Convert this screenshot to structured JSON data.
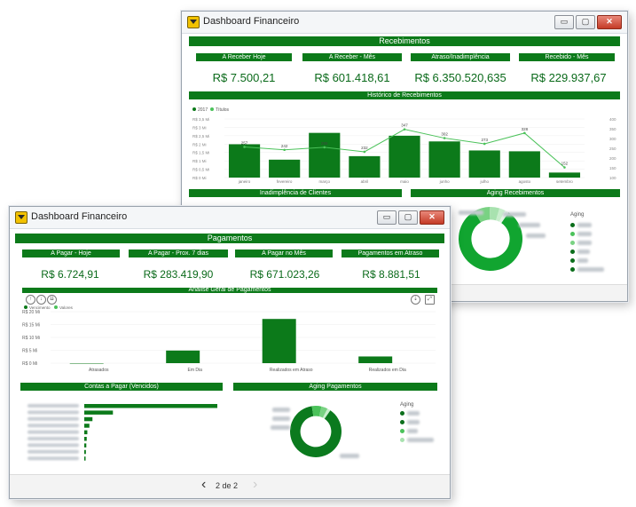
{
  "back_window": {
    "title": "Dashboard Financeiro",
    "buttons": {
      "minimize": "▭",
      "maximize": "▢",
      "close": "✕"
    },
    "header": "Recebimentos",
    "kpis": [
      {
        "label": "A Receber Hoje",
        "value": "R$ 7.500,21"
      },
      {
        "label": "A Receber - Mês",
        "value": "R$ 601.418,61"
      },
      {
        "label": "Atraso/Inadimplência",
        "value": "R$ 6.350.520,635"
      },
      {
        "label": "Recebido - Mês",
        "value": "R$ 229.937,67"
      }
    ],
    "historico_title": "Histórico de Recebimentos",
    "inadimplencia_title": "Inadimplência de Clientes",
    "aging_title": "Aging Recebimentos",
    "aging_legend_title": "Aging",
    "legend_series": [
      "2017",
      "Títulos"
    ]
  },
  "front_window": {
    "title": "Dashboard Financeiro",
    "buttons": {
      "minimize": "▭",
      "maximize": "▢",
      "close": "✕"
    },
    "header": "Pagamentos",
    "kpis": [
      {
        "label": "A Pagar - Hoje",
        "value": "R$ 6.724,91"
      },
      {
        "label": "A Pagar - Prox. 7 dias",
        "value": "R$ 283.419,90"
      },
      {
        "label": "A Pagar no Mês",
        "value": "R$ 671.023,26"
      },
      {
        "label": "Pagamentos em Atraso",
        "value": "R$ 8.881,51"
      }
    ],
    "analise_title": "Análise Geral de Pagamentos",
    "contas_title": "Contas a Pagar (Vencidos)",
    "aging_title": "Aging Pagamentos",
    "aging_legend_title": "Aging",
    "legend_series": [
      "Vencimento",
      "Valores"
    ],
    "pagination": {
      "prev": "‹",
      "label": "2 de 2",
      "next": "›"
    }
  },
  "chart_data": [
    {
      "type": "bar",
      "title": "Histórico de Recebimentos",
      "categories": [
        "janeiro",
        "fevereiro",
        "março",
        "abril",
        "maio",
        "junho",
        "julho",
        "agosto",
        "setembro"
      ],
      "series": [
        {
          "name": "2017",
          "values": [
            1.99,
            1.07,
            2.67,
            1.28,
            2.5,
            2.16,
            1.62,
            1.57,
            0.3
          ]
        },
        {
          "name": "Títulos",
          "values": [
            257,
            242,
            255,
            232,
            347,
            302,
            273,
            328,
            152
          ]
        }
      ],
      "y_ticks": [
        "R$ 3,5 Mi",
        "R$ 3 Mi",
        "R$ 2,5 Mi",
        "R$ 2 Mi",
        "R$ 1,5 Mi",
        "R$ 1 Mi",
        "R$ 0,5 Mi",
        "R$ 0 Mi"
      ],
      "y2_ticks": [
        "400",
        "350",
        "300",
        "250",
        "200",
        "150",
        "100"
      ],
      "ylim": [
        0,
        3.5
      ]
    },
    {
      "type": "bar",
      "title": "Análise Geral de Pagamentos",
      "categories": [
        "Atrasados",
        "Em Dia",
        "Realizados em Atraso",
        "Realizados em Dia"
      ],
      "series": [
        {
          "name": "Vencimento",
          "values": [
            0.0,
            4.9,
            17.17,
            2.6
          ]
        },
        {
          "name": "Valores",
          "values": [
            0.0,
            0.0,
            0.0,
            0.0
          ]
        }
      ],
      "y_ticks": [
        "R$ 20 Mi",
        "R$ 15 Mi",
        "R$ 10 Mi",
        "R$ 5 Mi",
        "R$ 0 Mi"
      ],
      "ylim": [
        0,
        20
      ]
    },
    {
      "type": "bar",
      "title": "Contas a Pagar (Vencidos)",
      "values": [
        6.5,
        1.4,
        0.4,
        0.25,
        0.15,
        0.12,
        0.1,
        0.08,
        0.05
      ]
    },
    {
      "type": "pie",
      "title": "Aging Recebimentos",
      "values": [
        82,
        8,
        5,
        3,
        2
      ]
    },
    {
      "type": "pie",
      "title": "Aging Pagamentos",
      "values": [
        88,
        6,
        4,
        2
      ]
    }
  ],
  "colors": {
    "primary_green": "#0c7a1a",
    "light_green": "#4bc25a",
    "pale_green": "#a8e2af",
    "accent_text": "#0a6a1a"
  }
}
